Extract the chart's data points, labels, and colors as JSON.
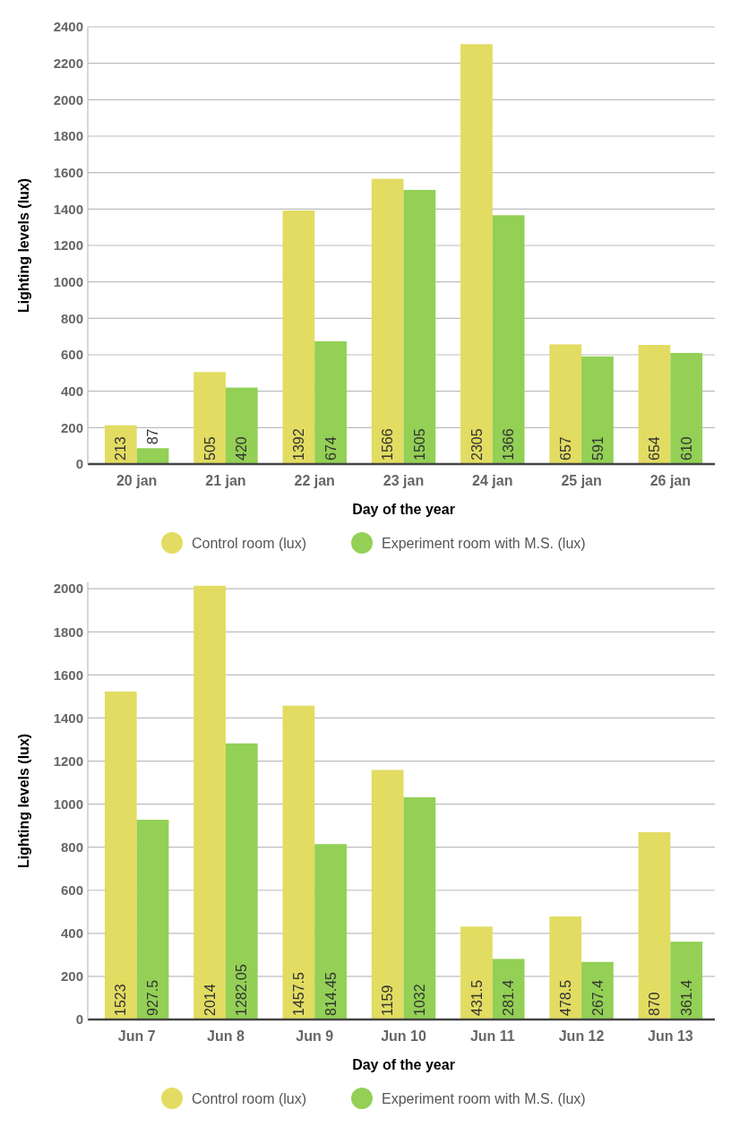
{
  "chart_data": [
    {
      "type": "bar",
      "xlabel": "Day of the year",
      "ylabel": "Lighting levels (lux)",
      "categories": [
        "20 jan",
        "21 jan",
        "22 jan",
        "23 jan",
        "24 jan",
        "25 jan",
        "26 jan"
      ],
      "series": [
        {
          "name": "Control room (lux)",
          "color": "#e2dc62",
          "values": [
            213,
            505,
            1392,
            1566,
            2305,
            657,
            654
          ]
        },
        {
          "name": "Experiment room with M.S. (lux)",
          "color": "#93d055",
          "values": [
            87,
            420,
            674,
            1505,
            1366,
            591,
            610
          ]
        }
      ],
      "ylim": [
        0,
        2400
      ],
      "yticks": [
        0,
        200,
        400,
        600,
        800,
        1000,
        1200,
        1400,
        1600,
        1800,
        2000,
        2200,
        2400
      ],
      "grid": "y",
      "legend": "bottom",
      "data_labels": true
    },
    {
      "type": "bar",
      "xlabel": "Day of the year",
      "ylabel": "Lighting levels (lux)",
      "categories": [
        "Jun 7",
        "Jun 8",
        "Jun 9",
        "Jun 10",
        "Jun 11",
        "Jun 12",
        "Jun 13"
      ],
      "series": [
        {
          "name": "Control room (lux)",
          "color": "#e2dc62",
          "values": [
            1523,
            2014,
            1457.5,
            1159,
            431.5,
            478.5,
            870
          ]
        },
        {
          "name": "Experiment room with M.S. (lux)",
          "color": "#93d055",
          "values": [
            927.5,
            1282.05,
            814.45,
            1032,
            281.4,
            267.4,
            361.4
          ]
        }
      ],
      "ylim": [
        0,
        2030
      ],
      "yticks": [
        0,
        200,
        400,
        600,
        800,
        1000,
        1200,
        1400,
        1600,
        1800,
        2000
      ],
      "grid": "y",
      "legend": "bottom",
      "data_labels": true
    }
  ]
}
